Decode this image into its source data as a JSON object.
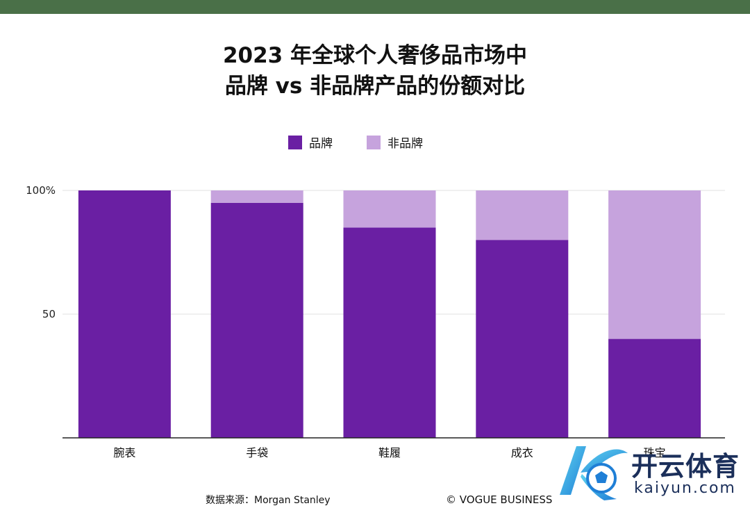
{
  "colors": {
    "top_bar": "#4a7048",
    "branded": "#6a1fa3",
    "non_branded": "#c6a3dd",
    "grid": "#e2e2e2",
    "axis": "#222222"
  },
  "chart_data": {
    "type": "bar",
    "stacked": true,
    "title_line1": "2023 年全球个人奢侈品市场中",
    "title_line2": "品牌 vs 非品牌产品的份额对比",
    "categories": [
      "腕表",
      "手袋",
      "鞋履",
      "成衣",
      "珠宝"
    ],
    "series": [
      {
        "name": "品牌",
        "values": [
          100,
          95,
          85,
          80,
          40
        ]
      },
      {
        "name": "非品牌",
        "values": [
          0,
          5,
          15,
          20,
          60
        ]
      }
    ],
    "ylim": [
      0,
      100
    ],
    "yticks": [
      {
        "value": 50,
        "label": "50"
      },
      {
        "value": 100,
        "label": "100%"
      }
    ],
    "grid": true,
    "legend_position": "top-center"
  },
  "footer": {
    "source": "数据来源：Morgan Stanley",
    "credit": "© VOGUE BUSINESS"
  },
  "logo": {
    "name_cn": "开云体育",
    "name_en": "kaiyun.com"
  }
}
